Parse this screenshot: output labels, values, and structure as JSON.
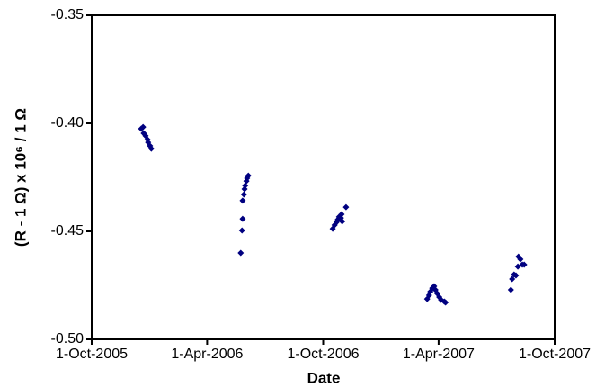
{
  "chart_data": {
    "type": "scatter",
    "x_label": "Date",
    "y_label": "(R - 1 Ω) x 10⁶ / 1 Ω",
    "color": "#000080",
    "xlim": [
      "2005-10-01",
      "2007-10-01"
    ],
    "xticks": [
      {
        "value": "2005-10-01",
        "label": "1-Oct-2005"
      },
      {
        "value": "2006-04-01",
        "label": "1-Apr-2006"
      },
      {
        "value": "2006-10-01",
        "label": "1-Oct-2006"
      },
      {
        "value": "2007-04-01",
        "label": "1-Apr-2007"
      },
      {
        "value": "2007-10-01",
        "label": "1-Oct-2007"
      }
    ],
    "ylim": [
      -0.5,
      -0.35
    ],
    "yticks": [
      {
        "value": -0.5,
        "label": "-0.50"
      },
      -0.45,
      {
        "value": -0.4,
        "label": "-0.40"
      },
      -0.35
    ],
    "x": [
      "2005-12-18",
      "2005-12-21",
      "2005-12-22",
      "2005-12-25",
      "2005-12-28",
      "2005-12-29",
      "2006-01-01",
      "2006-01-03",
      "2006-05-24",
      "2006-05-26",
      "2006-05-27",
      "2006-05-27",
      "2006-05-29",
      "2006-05-30",
      "2006-05-31",
      "2006-06-02",
      "2006-06-03",
      "2006-06-05",
      "2006-10-16",
      "2006-10-19",
      "2006-10-22",
      "2006-10-24",
      "2006-10-26",
      "2006-10-29",
      "2006-10-31",
      "2006-10-30",
      "2006-11-06",
      "2007-03-14",
      "2007-03-17",
      "2007-03-19",
      "2007-03-22",
      "2007-03-25",
      "2007-03-27",
      "2007-03-30",
      "2007-04-02",
      "2007-04-05",
      "2007-04-10",
      "2007-04-12",
      "2007-07-24",
      "2007-07-26",
      "2007-07-29",
      "2007-08-01",
      "2007-08-04",
      "2007-08-05",
      "2007-08-08",
      "2007-08-11",
      "2007-08-14"
    ],
    "values": [
      -0.4025,
      -0.4017,
      -0.4046,
      -0.4058,
      -0.4075,
      -0.4088,
      -0.4104,
      -0.4117,
      -0.46,
      -0.4496,
      -0.4442,
      -0.4358,
      -0.4329,
      -0.4304,
      -0.4288,
      -0.4267,
      -0.4254,
      -0.4242,
      -0.4488,
      -0.4471,
      -0.4458,
      -0.4446,
      -0.4433,
      -0.4438,
      -0.4454,
      -0.4421,
      -0.4388,
      -0.4813,
      -0.4796,
      -0.4779,
      -0.4763,
      -0.4754,
      -0.4771,
      -0.4788,
      -0.4804,
      -0.4817,
      -0.4825,
      -0.4829,
      -0.4771,
      -0.4721,
      -0.47,
      -0.4704,
      -0.4663,
      -0.4617,
      -0.4629,
      -0.4654,
      -0.4654
    ]
  }
}
